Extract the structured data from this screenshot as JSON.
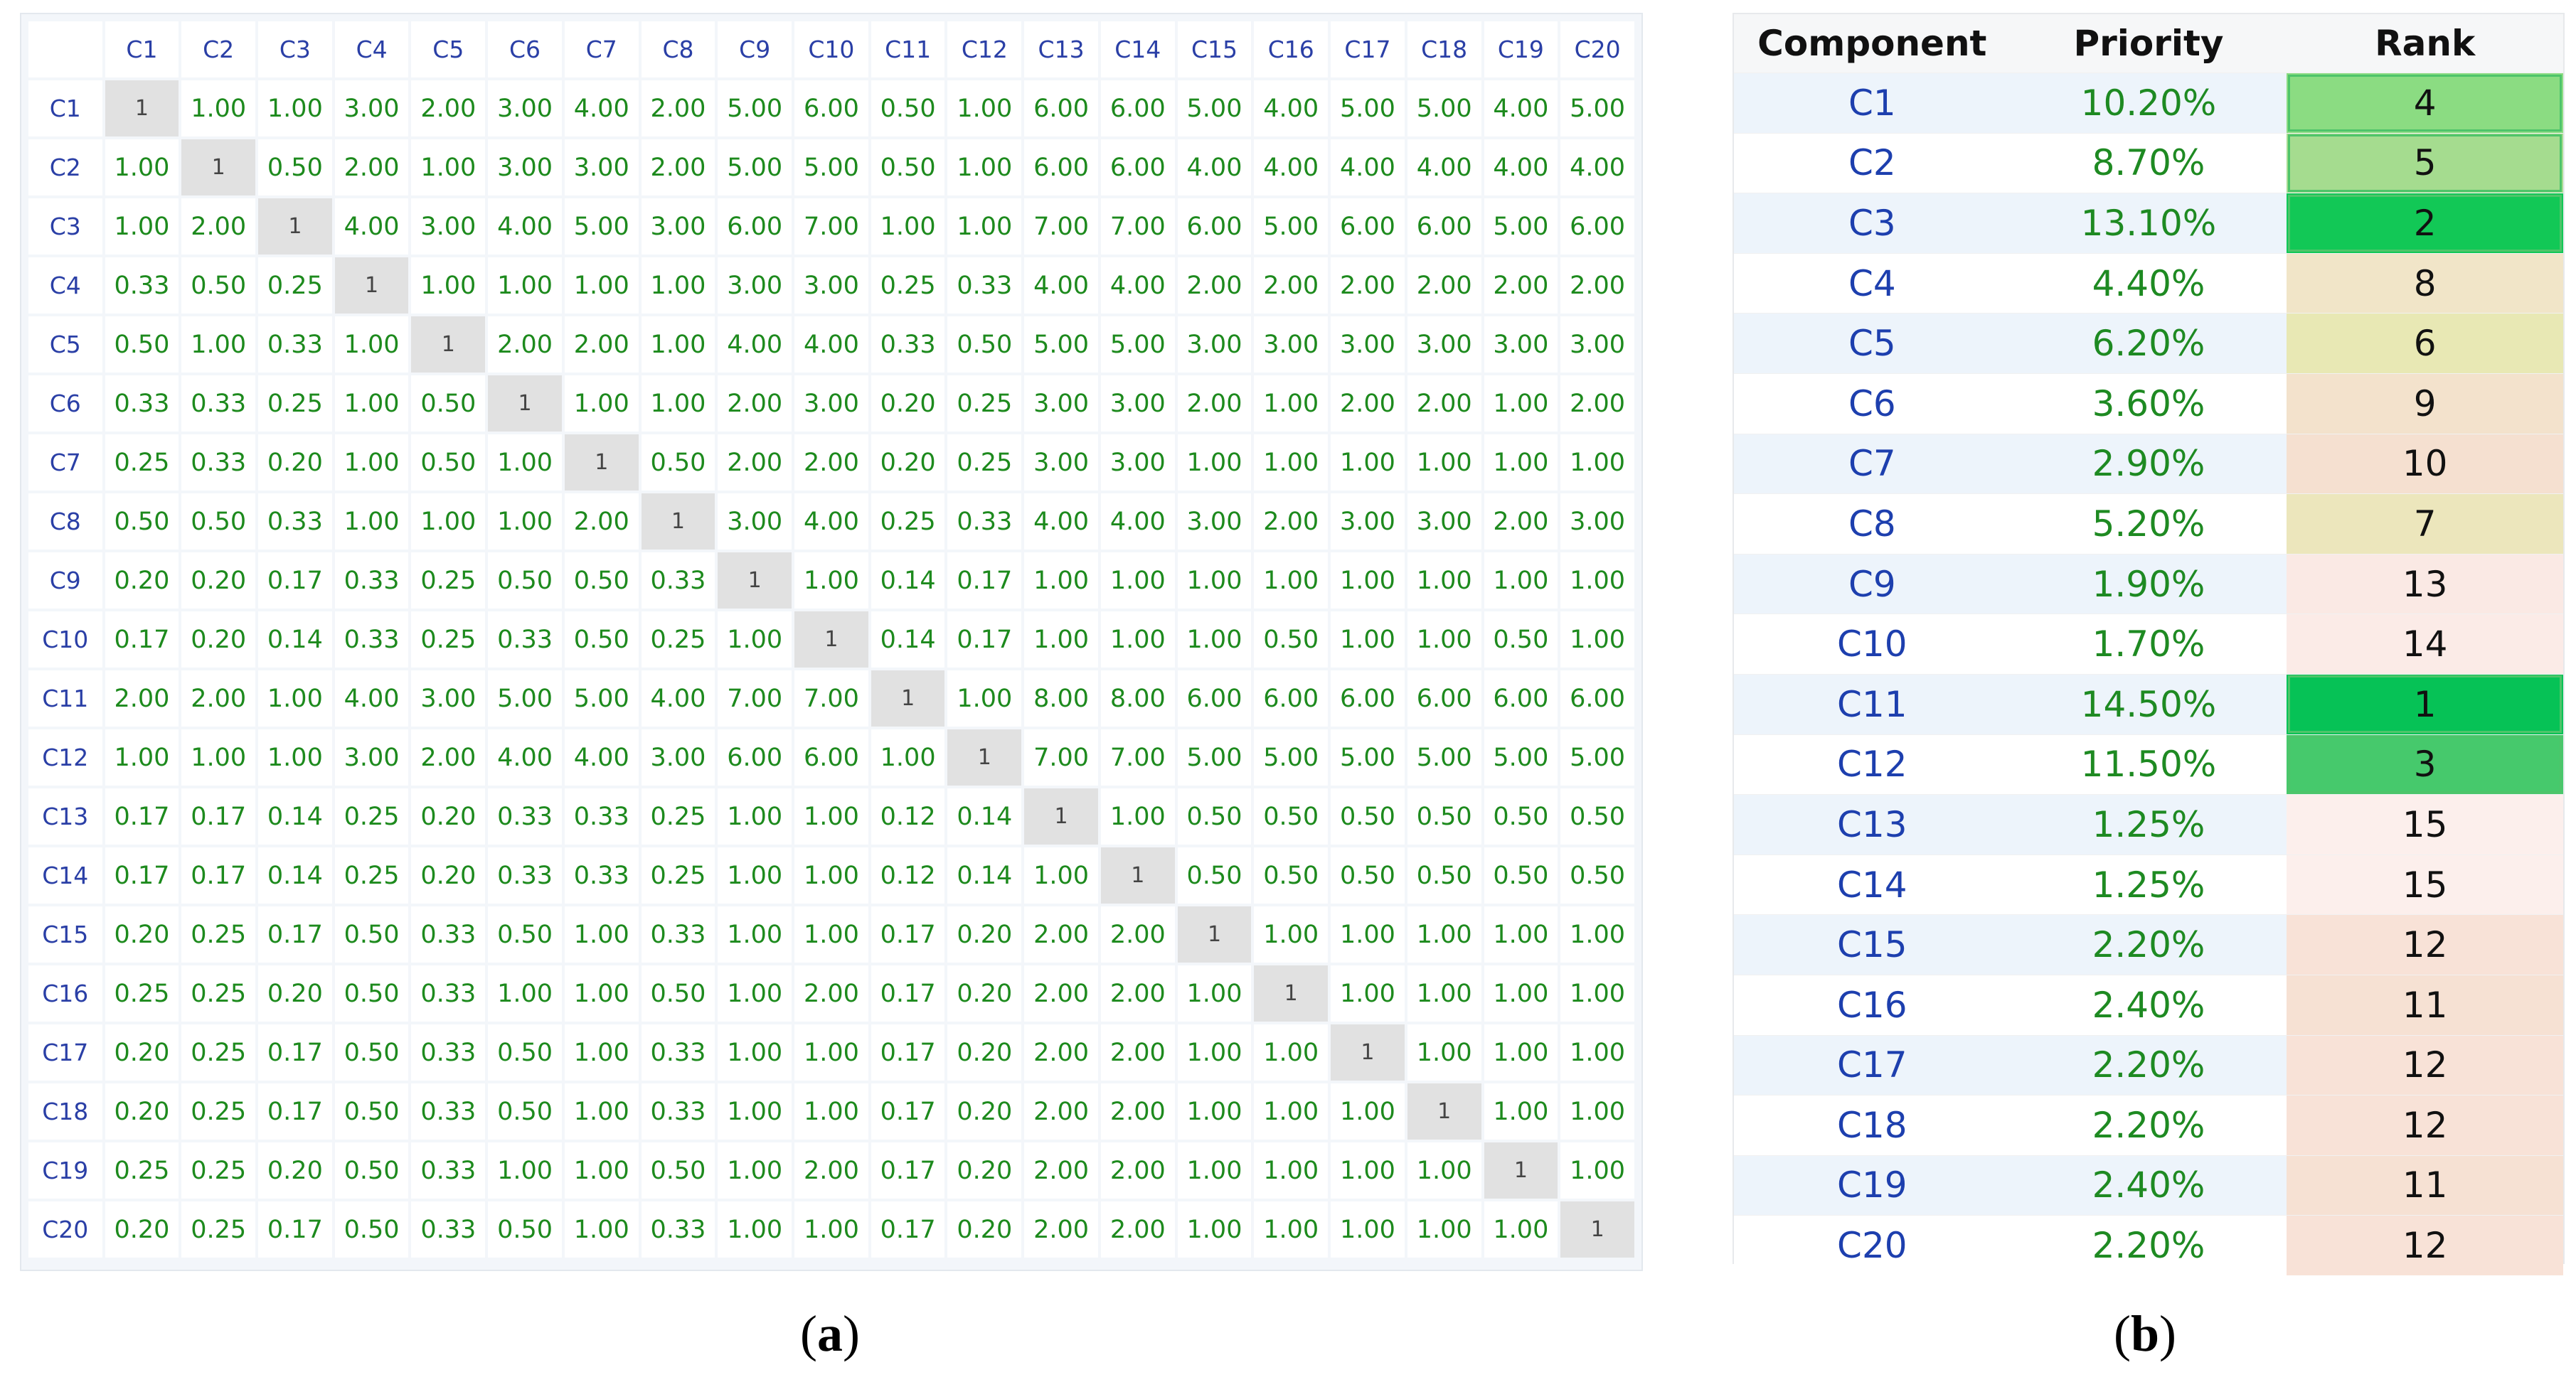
{
  "matrix": {
    "labels": [
      "C1",
      "C2",
      "C3",
      "C4",
      "C5",
      "C6",
      "C7",
      "C8",
      "C9",
      "C10",
      "C11",
      "C12",
      "C13",
      "C14",
      "C15",
      "C16",
      "C17",
      "C18",
      "C19",
      "C20"
    ],
    "rows": [
      [
        "1",
        "1.00",
        "1.00",
        "3.00",
        "2.00",
        "3.00",
        "4.00",
        "2.00",
        "5.00",
        "6.00",
        "0.50",
        "1.00",
        "6.00",
        "6.00",
        "5.00",
        "4.00",
        "5.00",
        "5.00",
        "4.00",
        "5.00"
      ],
      [
        "1.00",
        "1",
        "0.50",
        "2.00",
        "1.00",
        "3.00",
        "3.00",
        "2.00",
        "5.00",
        "5.00",
        "0.50",
        "1.00",
        "6.00",
        "6.00",
        "4.00",
        "4.00",
        "4.00",
        "4.00",
        "4.00",
        "4.00"
      ],
      [
        "1.00",
        "2.00",
        "1",
        "4.00",
        "3.00",
        "4.00",
        "5.00",
        "3.00",
        "6.00",
        "7.00",
        "1.00",
        "1.00",
        "7.00",
        "7.00",
        "6.00",
        "5.00",
        "6.00",
        "6.00",
        "5.00",
        "6.00"
      ],
      [
        "0.33",
        "0.50",
        "0.25",
        "1",
        "1.00",
        "1.00",
        "1.00",
        "1.00",
        "3.00",
        "3.00",
        "0.25",
        "0.33",
        "4.00",
        "4.00",
        "2.00",
        "2.00",
        "2.00",
        "2.00",
        "2.00",
        "2.00"
      ],
      [
        "0.50",
        "1.00",
        "0.33",
        "1.00",
        "1",
        "2.00",
        "2.00",
        "1.00",
        "4.00",
        "4.00",
        "0.33",
        "0.50",
        "5.00",
        "5.00",
        "3.00",
        "3.00",
        "3.00",
        "3.00",
        "3.00",
        "3.00"
      ],
      [
        "0.33",
        "0.33",
        "0.25",
        "1.00",
        "0.50",
        "1",
        "1.00",
        "1.00",
        "2.00",
        "3.00",
        "0.20",
        "0.25",
        "3.00",
        "3.00",
        "2.00",
        "1.00",
        "2.00",
        "2.00",
        "1.00",
        "2.00"
      ],
      [
        "0.25",
        "0.33",
        "0.20",
        "1.00",
        "0.50",
        "1.00",
        "1",
        "0.50",
        "2.00",
        "2.00",
        "0.20",
        "0.25",
        "3.00",
        "3.00",
        "1.00",
        "1.00",
        "1.00",
        "1.00",
        "1.00",
        "1.00"
      ],
      [
        "0.50",
        "0.50",
        "0.33",
        "1.00",
        "1.00",
        "1.00",
        "2.00",
        "1",
        "3.00",
        "4.00",
        "0.25",
        "0.33",
        "4.00",
        "4.00",
        "3.00",
        "2.00",
        "3.00",
        "3.00",
        "2.00",
        "3.00"
      ],
      [
        "0.20",
        "0.20",
        "0.17",
        "0.33",
        "0.25",
        "0.50",
        "0.50",
        "0.33",
        "1",
        "1.00",
        "0.14",
        "0.17",
        "1.00",
        "1.00",
        "1.00",
        "1.00",
        "1.00",
        "1.00",
        "1.00",
        "1.00"
      ],
      [
        "0.17",
        "0.20",
        "0.14",
        "0.33",
        "0.25",
        "0.33",
        "0.50",
        "0.25",
        "1.00",
        "1",
        "0.14",
        "0.17",
        "1.00",
        "1.00",
        "1.00",
        "0.50",
        "1.00",
        "1.00",
        "0.50",
        "1.00"
      ],
      [
        "2.00",
        "2.00",
        "1.00",
        "4.00",
        "3.00",
        "5.00",
        "5.00",
        "4.00",
        "7.00",
        "7.00",
        "1",
        "1.00",
        "8.00",
        "8.00",
        "6.00",
        "6.00",
        "6.00",
        "6.00",
        "6.00",
        "6.00"
      ],
      [
        "1.00",
        "1.00",
        "1.00",
        "3.00",
        "2.00",
        "4.00",
        "4.00",
        "3.00",
        "6.00",
        "6.00",
        "1.00",
        "1",
        "7.00",
        "7.00",
        "5.00",
        "5.00",
        "5.00",
        "5.00",
        "5.00",
        "5.00"
      ],
      [
        "0.17",
        "0.17",
        "0.14",
        "0.25",
        "0.20",
        "0.33",
        "0.33",
        "0.25",
        "1.00",
        "1.00",
        "0.12",
        "0.14",
        "1",
        "1.00",
        "0.50",
        "0.50",
        "0.50",
        "0.50",
        "0.50",
        "0.50"
      ],
      [
        "0.17",
        "0.17",
        "0.14",
        "0.25",
        "0.20",
        "0.33",
        "0.33",
        "0.25",
        "1.00",
        "1.00",
        "0.12",
        "0.14",
        "1.00",
        "1",
        "0.50",
        "0.50",
        "0.50",
        "0.50",
        "0.50",
        "0.50"
      ],
      [
        "0.20",
        "0.25",
        "0.17",
        "0.50",
        "0.33",
        "0.50",
        "1.00",
        "0.33",
        "1.00",
        "1.00",
        "0.17",
        "0.20",
        "2.00",
        "2.00",
        "1",
        "1.00",
        "1.00",
        "1.00",
        "1.00",
        "1.00"
      ],
      [
        "0.25",
        "0.25",
        "0.20",
        "0.50",
        "0.33",
        "1.00",
        "1.00",
        "0.50",
        "1.00",
        "2.00",
        "0.17",
        "0.20",
        "2.00",
        "2.00",
        "1.00",
        "1",
        "1.00",
        "1.00",
        "1.00",
        "1.00"
      ],
      [
        "0.20",
        "0.25",
        "0.17",
        "0.50",
        "0.33",
        "0.50",
        "1.00",
        "0.33",
        "1.00",
        "1.00",
        "0.17",
        "0.20",
        "2.00",
        "2.00",
        "1.00",
        "1.00",
        "1",
        "1.00",
        "1.00",
        "1.00"
      ],
      [
        "0.20",
        "0.25",
        "0.17",
        "0.50",
        "0.33",
        "0.50",
        "1.00",
        "0.33",
        "1.00",
        "1.00",
        "0.17",
        "0.20",
        "2.00",
        "2.00",
        "1.00",
        "1.00",
        "1.00",
        "1",
        "1.00",
        "1.00"
      ],
      [
        "0.25",
        "0.25",
        "0.20",
        "0.50",
        "0.33",
        "1.00",
        "1.00",
        "0.50",
        "1.00",
        "2.00",
        "0.17",
        "0.20",
        "2.00",
        "2.00",
        "1.00",
        "1.00",
        "1.00",
        "1.00",
        "1",
        "1.00"
      ],
      [
        "0.20",
        "0.25",
        "0.17",
        "0.50",
        "0.33",
        "0.50",
        "1.00",
        "0.33",
        "1.00",
        "1.00",
        "0.17",
        "0.20",
        "2.00",
        "2.00",
        "1.00",
        "1.00",
        "1.00",
        "1.00",
        "1.00",
        "1"
      ]
    ]
  },
  "ranking": {
    "headers": {
      "component": "Component",
      "priority": "Priority",
      "rank": "Rank"
    },
    "rows": [
      {
        "component": "C1",
        "priority": "10.20%",
        "rank": "4",
        "color": "#8bdc82"
      },
      {
        "component": "C2",
        "priority": "8.70%",
        "rank": "5",
        "color": "#a5dc8f"
      },
      {
        "component": "C3",
        "priority": "13.10%",
        "rank": "2",
        "color": "#12c856"
      },
      {
        "component": "C4",
        "priority": "4.40%",
        "rank": "8",
        "color": "#f1e5c8"
      },
      {
        "component": "C5",
        "priority": "6.20%",
        "rank": "6",
        "color": "#e8e8b4"
      },
      {
        "component": "C6",
        "priority": "3.60%",
        "rank": "9",
        "color": "#f3e2cc"
      },
      {
        "component": "C7",
        "priority": "2.90%",
        "rank": "10",
        "color": "#f5e0d0"
      },
      {
        "component": "C8",
        "priority": "5.20%",
        "rank": "7",
        "color": "#ece6bc"
      },
      {
        "component": "C9",
        "priority": "1.90%",
        "rank": "13",
        "color": "#fae9e4"
      },
      {
        "component": "C10",
        "priority": "1.70%",
        "rank": "14",
        "color": "#fbebe7"
      },
      {
        "component": "C11",
        "priority": "14.50%",
        "rank": "1",
        "color": "#06c256"
      },
      {
        "component": "C12",
        "priority": "11.50%",
        "rank": "3",
        "color": "#46c96c"
      },
      {
        "component": "C13",
        "priority": "1.25%",
        "rank": "15",
        "color": "#fcefec"
      },
      {
        "component": "C14",
        "priority": "1.25%",
        "rank": "15",
        "color": "#fcefec"
      },
      {
        "component": "C15",
        "priority": "2.20%",
        "rank": "12",
        "color": "#f8e2d7"
      },
      {
        "component": "C16",
        "priority": "2.40%",
        "rank": "11",
        "color": "#f6e1d3"
      },
      {
        "component": "C17",
        "priority": "2.20%",
        "rank": "12",
        "color": "#f8e2d7"
      },
      {
        "component": "C18",
        "priority": "2.20%",
        "rank": "12",
        "color": "#f8e2d7"
      },
      {
        "component": "C19",
        "priority": "2.40%",
        "rank": "11",
        "color": "#f6e1d3"
      },
      {
        "component": "C20",
        "priority": "2.20%",
        "rank": "12",
        "color": "#f8e2d7"
      }
    ],
    "highlighted_ranks": [
      "1",
      "2",
      "3",
      "4",
      "5"
    ]
  },
  "captions": {
    "a": {
      "open": "(",
      "letter": "a",
      "close": ")"
    },
    "b": {
      "open": "(",
      "letter": "b",
      "close": ")"
    }
  }
}
